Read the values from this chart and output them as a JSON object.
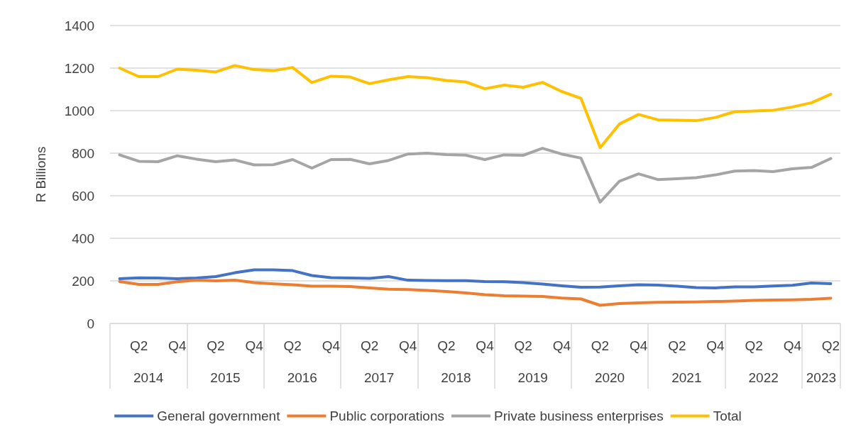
{
  "chart_data": {
    "type": "line",
    "ylabel": "R Billions",
    "categories": [
      null,
      "Q2",
      null,
      "Q4",
      null,
      "Q2",
      null,
      "Q4",
      null,
      "Q2",
      null,
      "Q4",
      null,
      "Q2",
      null,
      "Q4",
      null,
      "Q2",
      null,
      "Q4",
      null,
      "Q2",
      null,
      "Q4",
      null,
      "Q2",
      null,
      "Q4",
      null,
      "Q2",
      null,
      "Q4",
      null,
      "Q2",
      null,
      "Q4",
      null,
      "Q2"
    ],
    "annotations": [
      "2014",
      "2015",
      "2016",
      "2017",
      "2018",
      "2019",
      "2020",
      "2021",
      "2022",
      "2023"
    ],
    "series": [
      {
        "name": "General government",
        "color": "#4472c4",
        "values": [
          210,
          214,
          213,
          210,
          213,
          220,
          238,
          252,
          252,
          248,
          225,
          215,
          213,
          212,
          220,
          203,
          202,
          201,
          201,
          197,
          196,
          192,
          185,
          177,
          170,
          171,
          177,
          182,
          180,
          175,
          168,
          167,
          172,
          172,
          176,
          179,
          190,
          187
        ]
      },
      {
        "name": "Public corporations",
        "color": "#ed7d31",
        "values": [
          197,
          183,
          183,
          196,
          203,
          200,
          203,
          192,
          186,
          182,
          175,
          175,
          173,
          167,
          161,
          159,
          155,
          150,
          143,
          135,
          130,
          128,
          127,
          119,
          115,
          85,
          93,
          97,
          99,
          100,
          101,
          103,
          105,
          108,
          110,
          111,
          113,
          118
        ]
      },
      {
        "name": "Private business enterprises",
        "color": "#a5a5a5",
        "values": [
          792,
          762,
          760,
          788,
          772,
          760,
          768,
          745,
          746,
          770,
          730,
          770,
          771,
          750,
          766,
          796,
          800,
          793,
          791,
          770,
          792,
          790,
          823,
          796,
          777,
          570,
          668,
          703,
          676,
          680,
          685,
          698,
          716,
          718,
          713,
          727,
          733,
          775
        ]
      },
      {
        "name": "Total",
        "color": "#ffc000",
        "values": [
          1200,
          1160,
          1160,
          1195,
          1190,
          1182,
          1212,
          1193,
          1188,
          1203,
          1132,
          1162,
          1158,
          1127,
          1145,
          1160,
          1155,
          1142,
          1135,
          1103,
          1120,
          1110,
          1133,
          1090,
          1058,
          826,
          937,
          982,
          957,
          955,
          953,
          968,
          995,
          998,
          1002,
          1017,
          1037,
          1077
        ]
      }
    ],
    "ylim": [
      0,
      1400
    ],
    "yticks": [
      0,
      200,
      400,
      600,
      800,
      1000,
      1200,
      1400
    ],
    "grid": "y",
    "legend": "bottom",
    "marker": "none",
    "line_style": "solid"
  }
}
